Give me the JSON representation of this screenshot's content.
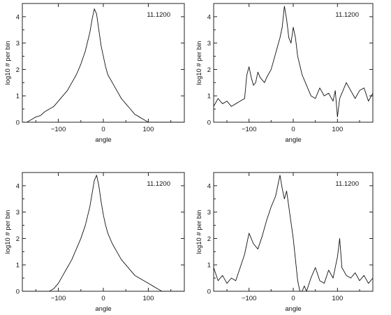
{
  "chart_data": [
    {
      "type": "line",
      "xlabel": "angle",
      "ylabel": "log10 # per bin",
      "annotation": "11.1200",
      "xlim": [
        -180,
        180
      ],
      "ylim": [
        0,
        4.5
      ],
      "xticks": [
        -100,
        0,
        100
      ],
      "yticks": [
        0,
        1,
        2,
        3,
        4
      ],
      "grid": false,
      "x": [
        -180,
        -170,
        -160,
        -150,
        -140,
        -130,
        -120,
        -110,
        -100,
        -90,
        -80,
        -70,
        -60,
        -50,
        -40,
        -30,
        -25,
        -20,
        -15,
        -10,
        -5,
        0,
        5,
        10,
        20,
        30,
        40,
        50,
        60,
        70,
        80,
        90,
        100,
        110,
        120,
        130,
        140,
        150,
        160,
        170,
        180
      ],
      "y": [
        0,
        0,
        0.1,
        0.2,
        0.25,
        0.4,
        0.5,
        0.6,
        0.8,
        1.0,
        1.2,
        1.5,
        1.8,
        2.2,
        2.7,
        3.4,
        3.9,
        4.3,
        4.1,
        3.5,
        2.9,
        2.5,
        2.1,
        1.8,
        1.5,
        1.2,
        0.9,
        0.7,
        0.5,
        0.3,
        0.2,
        0.1,
        0,
        0,
        0,
        0,
        0,
        0,
        0,
        0,
        0
      ]
    },
    {
      "type": "line",
      "xlabel": "angle",
      "ylabel": "log10 # per bin",
      "annotation": "11.1200",
      "xlim": [
        -180,
        180
      ],
      "ylim": [
        0,
        4.5
      ],
      "xticks": [
        -100,
        0,
        100
      ],
      "yticks": [
        0,
        1,
        2,
        3,
        4
      ],
      "grid": false,
      "x": [
        -180,
        -170,
        -160,
        -150,
        -140,
        -130,
        -120,
        -110,
        -105,
        -100,
        -95,
        -90,
        -85,
        -80,
        -75,
        -70,
        -65,
        -60,
        -50,
        -40,
        -30,
        -25,
        -20,
        -15,
        -10,
        -5,
        0,
        5,
        10,
        20,
        30,
        40,
        50,
        60,
        70,
        80,
        90,
        95,
        100,
        105,
        110,
        120,
        130,
        140,
        150,
        160,
        170,
        180
      ],
      "y": [
        0.6,
        0.9,
        0.7,
        0.8,
        0.6,
        0.7,
        0.8,
        0.9,
        1.8,
        2.1,
        1.7,
        1.4,
        1.5,
        1.9,
        1.7,
        1.6,
        1.5,
        1.7,
        2.0,
        2.6,
        3.2,
        3.6,
        4.4,
        3.9,
        3.2,
        3.0,
        3.6,
        3.2,
        2.5,
        1.8,
        1.4,
        1.0,
        0.9,
        1.3,
        1.0,
        1.1,
        0.8,
        1.2,
        0.2,
        0.9,
        1.1,
        1.5,
        1.2,
        0.9,
        1.2,
        1.3,
        0.8,
        1.1
      ]
    },
    {
      "type": "line",
      "xlabel": "angle",
      "ylabel": "log10 # per bin",
      "annotation": "11.1200",
      "xlim": [
        -180,
        180
      ],
      "ylim": [
        0,
        4.5
      ],
      "xticks": [
        -100,
        0,
        100
      ],
      "yticks": [
        0,
        1,
        2,
        3,
        4
      ],
      "grid": false,
      "x": [
        -180,
        -170,
        -160,
        -150,
        -140,
        -130,
        -120,
        -110,
        -100,
        -90,
        -80,
        -70,
        -60,
        -50,
        -40,
        -30,
        -25,
        -20,
        -15,
        -10,
        -5,
        0,
        5,
        10,
        20,
        30,
        40,
        50,
        60,
        70,
        80,
        90,
        100,
        110,
        120,
        130,
        140,
        150,
        160,
        170,
        180
      ],
      "y": [
        0,
        0,
        0,
        0,
        0,
        0,
        0,
        0.1,
        0.3,
        0.6,
        0.9,
        1.2,
        1.6,
        2.0,
        2.5,
        3.2,
        3.7,
        4.2,
        4.4,
        4.0,
        3.4,
        2.9,
        2.5,
        2.2,
        1.8,
        1.5,
        1.2,
        1.0,
        0.8,
        0.6,
        0.5,
        0.4,
        0.3,
        0.2,
        0.1,
        0,
        0,
        0,
        0,
        0,
        0
      ]
    },
    {
      "type": "line",
      "xlabel": "angle",
      "ylabel": "log10 # per bin",
      "annotation": "11.1200",
      "xlim": [
        -180,
        180
      ],
      "ylim": [
        0,
        4.5
      ],
      "xticks": [
        -100,
        0,
        100
      ],
      "yticks": [
        0,
        1,
        2,
        3,
        4
      ],
      "grid": false,
      "x": [
        -180,
        -170,
        -160,
        -150,
        -140,
        -130,
        -120,
        -110,
        -100,
        -90,
        -80,
        -70,
        -60,
        -50,
        -40,
        -30,
        -25,
        -20,
        -15,
        -10,
        -5,
        0,
        5,
        10,
        15,
        20,
        25,
        30,
        40,
        50,
        60,
        70,
        80,
        90,
        100,
        105,
        110,
        120,
        130,
        140,
        150,
        160,
        170,
        180
      ],
      "y": [
        0.9,
        0.4,
        0.6,
        0.3,
        0.5,
        0.4,
        0.9,
        1.4,
        2.2,
        1.8,
        1.6,
        2.1,
        2.7,
        3.2,
        3.6,
        4.4,
        3.9,
        3.5,
        3.8,
        3.2,
        2.6,
        2.0,
        1.2,
        0.4,
        0,
        0,
        0.2,
        0,
        0.5,
        0.9,
        0.4,
        0.3,
        0.8,
        0.5,
        1.3,
        2.0,
        0.9,
        0.6,
        0.5,
        0.7,
        0.4,
        0.6,
        0.3,
        0.5
      ]
    }
  ]
}
